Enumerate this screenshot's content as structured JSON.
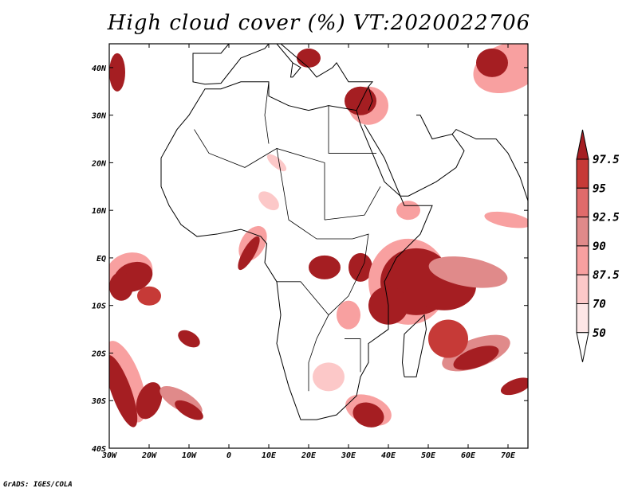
{
  "title": "High cloud cover (%) VT:2020022706",
  "credit": "GrADS: IGES/COLA",
  "map": {
    "lon_range": [
      -30,
      75
    ],
    "lat_range": [
      -40,
      45
    ],
    "lon_ticks": [
      {
        "v": -30,
        "label": "30W"
      },
      {
        "v": -20,
        "label": "20W"
      },
      {
        "v": -10,
        "label": "10W"
      },
      {
        "v": 0,
        "label": "0"
      },
      {
        "v": 10,
        "label": "10E"
      },
      {
        "v": 20,
        "label": "20E"
      },
      {
        "v": 30,
        "label": "30E"
      },
      {
        "v": 40,
        "label": "40E"
      },
      {
        "v": 50,
        "label": "50E"
      },
      {
        "v": 60,
        "label": "60E"
      },
      {
        "v": 70,
        "label": "70E"
      }
    ],
    "lat_ticks": [
      {
        "v": 40,
        "label": "40N"
      },
      {
        "v": 30,
        "label": "30N"
      },
      {
        "v": 20,
        "label": "20N"
      },
      {
        "v": 10,
        "label": "10N"
      },
      {
        "v": 0,
        "label": "EQ"
      },
      {
        "v": -10,
        "label": "10S"
      },
      {
        "v": -20,
        "label": "20S"
      },
      {
        "v": -30,
        "label": "30S"
      },
      {
        "v": -40,
        "label": "40S"
      }
    ]
  },
  "colorbar": {
    "levels": [
      "50",
      "70",
      "87.5",
      "90",
      "92.5",
      "95",
      "97.5"
    ],
    "colors": [
      "#ffffff",
      "#fde6e6",
      "#fcc8c8",
      "#f8a0a0",
      "#e08a8a",
      "#e06b6b",
      "#c63a37",
      "#a51e22"
    ]
  }
}
